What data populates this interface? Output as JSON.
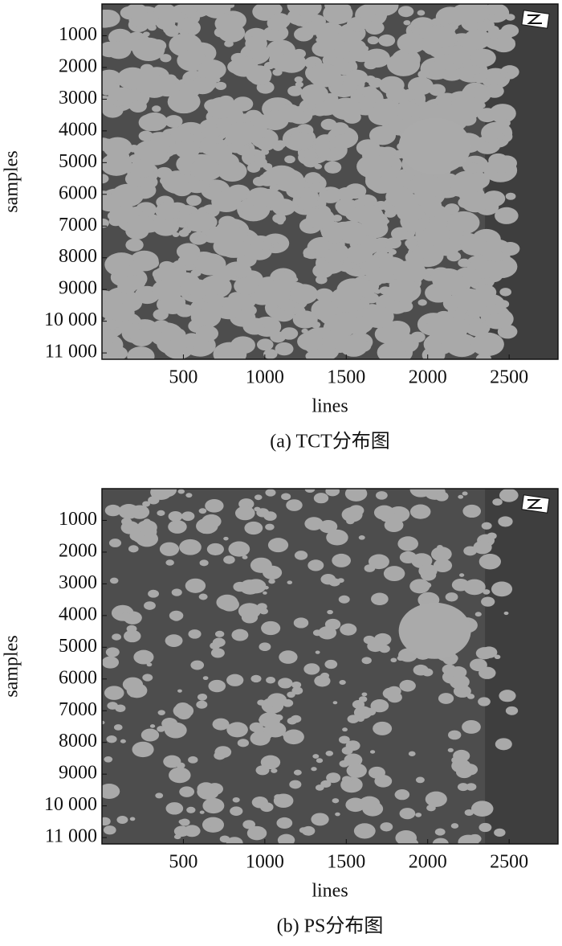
{
  "chart_data": [
    {
      "type": "image",
      "title": "(a) TCT分布图",
      "x_label": "lines",
      "y_label": "samples",
      "xlim": [
        0,
        2800
      ],
      "ylim": [
        0,
        11200
      ],
      "xticks": [
        500,
        1000,
        1500,
        2000,
        2500
      ],
      "yticks": [
        1000,
        2000,
        3000,
        4000,
        5000,
        6000,
        7000,
        8000,
        9000,
        {
          "value": 10000,
          "label": "10 000"
        },
        {
          "value": 11000,
          "label": "11 000"
        }
      ]
    },
    {
      "type": "image",
      "title": "(b) PS分布图",
      "x_label": "lines",
      "y_label": "samples",
      "xlim": [
        0,
        2800
      ],
      "ylim": [
        0,
        11200
      ],
      "xticks": [
        500,
        1000,
        1500,
        2000,
        2500
      ],
      "yticks": [
        1000,
        2000,
        3000,
        4000,
        5000,
        6000,
        7000,
        8000,
        9000,
        {
          "value": 10000,
          "label": "10 000"
        },
        {
          "value": 11000,
          "label": "11 000"
        }
      ]
    }
  ]
}
